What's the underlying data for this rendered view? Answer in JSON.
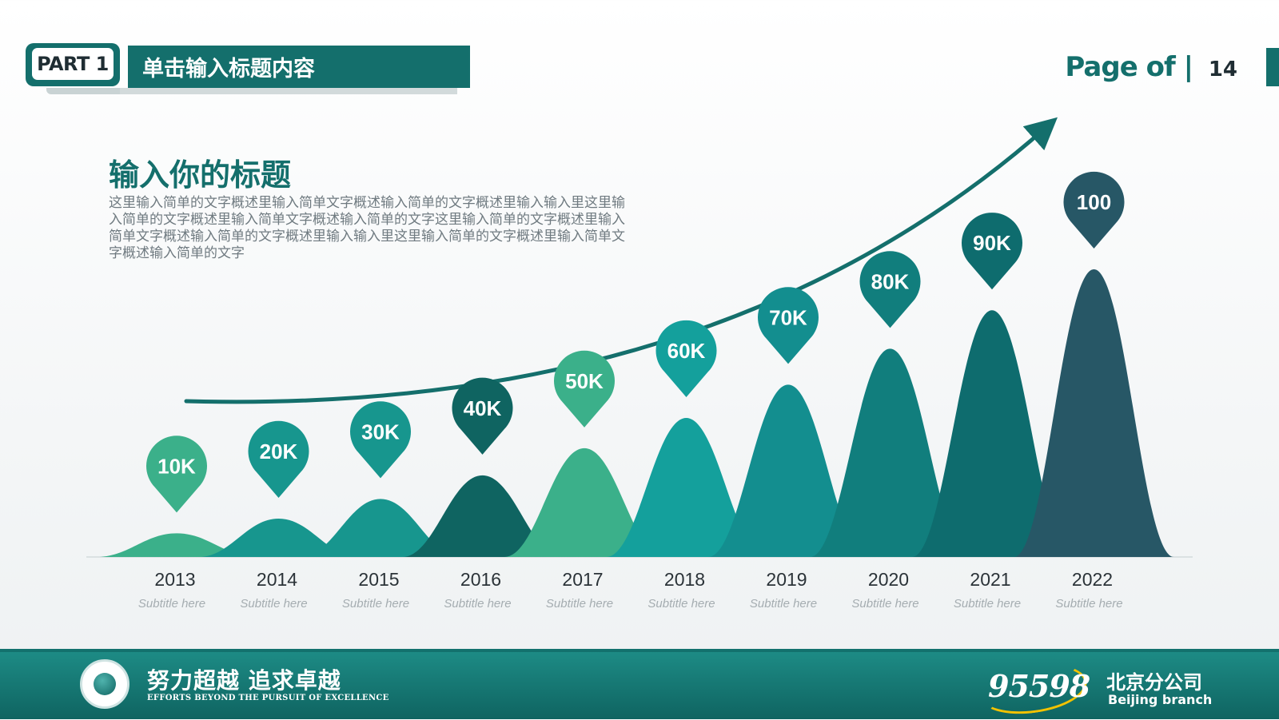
{
  "header": {
    "part_label": "PART 1",
    "title": "单击输入标题内容",
    "page_of": "Page of |",
    "page_number": "14"
  },
  "content": {
    "heading": "输入你的标题",
    "description": "这里输入简单的文字概述里输入简单文字概述输入简单的文字概述里输入输入里这里输入简单的文字概述里输入简单文字概述输入简单的文字这里输入简单的文字概述里输入简单文字概述输入简单的文字概述里输入输入里这里输入简单的文字概述里输入简单文字概述输入简单的文字"
  },
  "chart_data": {
    "type": "area",
    "categories": [
      "2013",
      "2014",
      "2015",
      "2016",
      "2017",
      "2018",
      "2019",
      "2020",
      "2021",
      "2022"
    ],
    "values": [
      10,
      20,
      30,
      40,
      50,
      60,
      70,
      80,
      90,
      100
    ],
    "data_labels": [
      "10K",
      "20K",
      "30K",
      "40K",
      "50K",
      "60K",
      "70K",
      "80K",
      "90K",
      "100"
    ],
    "subtitles": [
      "Subtitle here",
      "Subtitle here",
      "Subtitle here",
      "Subtitle here",
      "Subtitle here",
      "Subtitle here",
      "Subtitle here",
      "Subtitle here",
      "Subtitle here",
      "Subtitle here"
    ],
    "colors": [
      "#3bb08a",
      "#17968e",
      "#17968e",
      "#0f6461",
      "#3bb08a",
      "#14a09c",
      "#138e8f",
      "#117e7d",
      "#0e6c6e",
      "#275766"
    ],
    "pin_colors": [
      "#3bb08a",
      "#17968e",
      "#17968e",
      "#0f6461",
      "#3bb08a",
      "#14a09c",
      "#138e8f",
      "#117e7d",
      "#0e6c6e",
      "#275766"
    ],
    "trend_arrow": true,
    "grid": false,
    "legend": "none"
  },
  "footer": {
    "slogan": "努力超越 追求卓越",
    "slogan_en": "EFFORTS BEYOND THE PURSUIT OF EXCELLENCE",
    "hotline": "95598",
    "branch_cn": "北京分公司",
    "branch_en": "Beijing branch"
  }
}
